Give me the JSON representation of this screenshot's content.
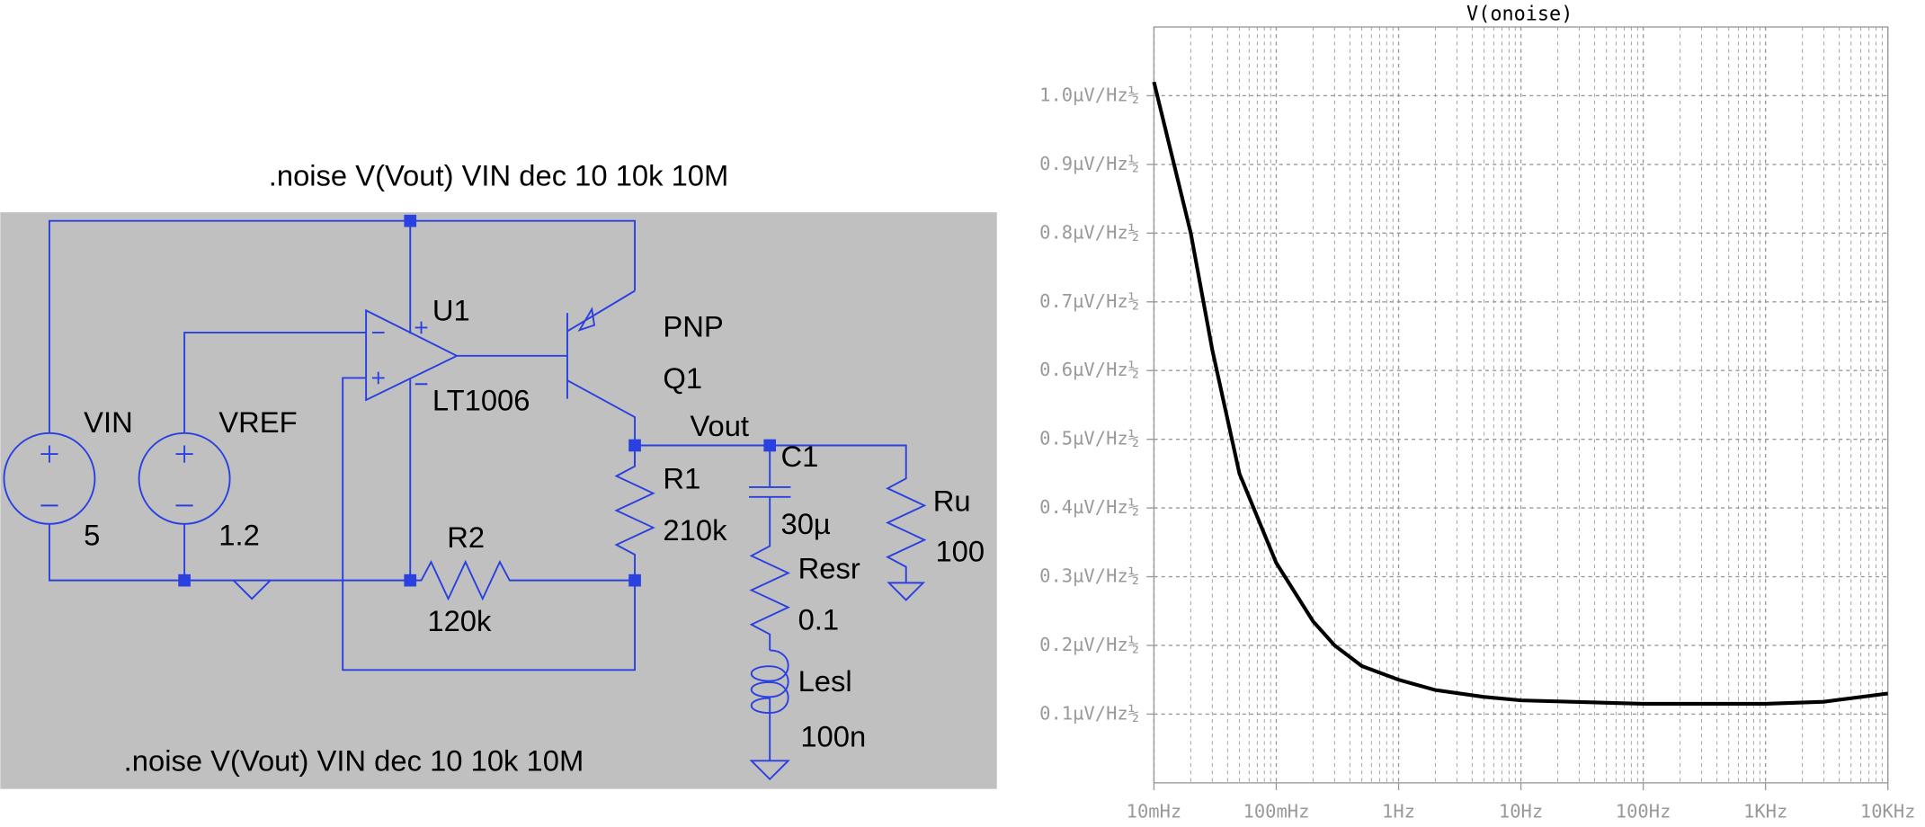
{
  "chart_data": {
    "type": "line",
    "title": "V(onoise)",
    "x": [
      0.01,
      0.02,
      0.03,
      0.05,
      0.1,
      0.2,
      0.3,
      0.5,
      1,
      2,
      5,
      10,
      100,
      1000,
      3000,
      10000
    ],
    "series": [
      {
        "name": "V(onoise)",
        "color": "#000000",
        "values": [
          1.02,
          0.8,
          0.63,
          0.45,
          0.32,
          0.235,
          0.2,
          0.17,
          0.15,
          0.135,
          0.125,
          0.12,
          0.115,
          0.115,
          0.118,
          0.13
        ]
      }
    ],
    "xlim": [
      0.01,
      10000
    ],
    "x_log": true,
    "xticks": [
      {
        "value": 0.01,
        "label": "10mHz"
      },
      {
        "value": 0.1,
        "label": "100mHz"
      },
      {
        "value": 1,
        "label": "1Hz"
      },
      {
        "value": 10,
        "label": "10Hz"
      },
      {
        "value": 100,
        "label": "100Hz"
      },
      {
        "value": 1000,
        "label": "1KHz"
      },
      {
        "value": 10000,
        "label": "10KHz"
      }
    ],
    "ylim": [
      0,
      1.1
    ],
    "yticks": [
      {
        "value": 0.1,
        "label": "0.1µV/Hz½"
      },
      {
        "value": 0.2,
        "label": "0.2µV/Hz½"
      },
      {
        "value": 0.3,
        "label": "0.3µV/Hz½"
      },
      {
        "value": 0.4,
        "label": "0.4µV/Hz½"
      },
      {
        "value": 0.5,
        "label": "0.5µV/Hz½"
      },
      {
        "value": 0.6,
        "label": "0.6µV/Hz½"
      },
      {
        "value": 0.7,
        "label": "0.7µV/Hz½"
      },
      {
        "value": 0.8,
        "label": "0.8µV/Hz½"
      },
      {
        "value": 0.9,
        "label": "0.9µV/Hz½"
      },
      {
        "value": 1.0,
        "label": "1.0µV/Hz½"
      }
    ],
    "grid": true
  },
  "schematic": {
    "directives": [
      ".noise V(Vout) VIN dec 10 10k 10M",
      ".noise V(Vout) VIN dec 10 10k 10M"
    ],
    "net_label": "Vout",
    "components": {
      "vin": {
        "name": "VIN",
        "value": "5"
      },
      "vref": {
        "name": "VREF",
        "value": "1.2"
      },
      "u1": {
        "name": "U1",
        "value": "LT1006"
      },
      "q1": {
        "name": "Q1",
        "value": "PNP"
      },
      "r1": {
        "name": "R1",
        "value": "210k"
      },
      "r2": {
        "name": "R2",
        "value": "120k"
      },
      "c1": {
        "name": "C1",
        "value": "30µ"
      },
      "resr": {
        "name": "Resr",
        "value": "0.1"
      },
      "lesl": {
        "name": "Lesl",
        "value": "100n"
      },
      "ru": {
        "name": "Ru",
        "value": "100"
      }
    }
  }
}
